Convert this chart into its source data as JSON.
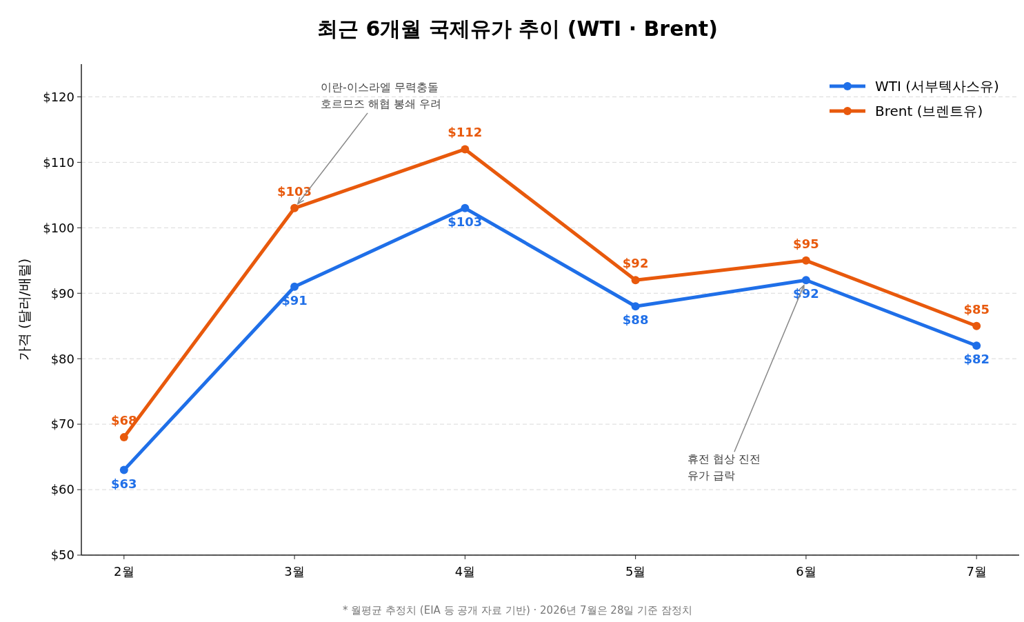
{
  "chart_data": {
    "type": "line",
    "title": "최근 6개월 국제유가 추이 (WTI · Brent)",
    "ylabel": "가격 (달러/배럴)",
    "categories": [
      "2월",
      "3월",
      "4월",
      "5월",
      "6월",
      "7월"
    ],
    "series": [
      {
        "name": "WTI (서부텍사스유)",
        "color": "#1f6fe8",
        "values": [
          63,
          91,
          103,
          88,
          92,
          82
        ],
        "value_labels": [
          "$63",
          "$91",
          "$103",
          "$88",
          "$92",
          "$82"
        ]
      },
      {
        "name": "Brent (브렌트유)",
        "color": "#e8590c",
        "values": [
          68,
          103,
          112,
          92,
          95,
          85
        ],
        "value_labels": [
          "$68",
          "$103",
          "$112",
          "$92",
          "$95",
          "$85"
        ]
      }
    ],
    "ylim": [
      50,
      125
    ],
    "yticks": [
      {
        "value": 50,
        "label": "$50"
      },
      {
        "value": 60,
        "label": "$60"
      },
      {
        "value": 70,
        "label": "$70"
      },
      {
        "value": 80,
        "label": "$80"
      },
      {
        "value": 90,
        "label": "$90"
      },
      {
        "value": 100,
        "label": "$100"
      },
      {
        "value": 110,
        "label": "$110"
      },
      {
        "value": 120,
        "label": "$120"
      }
    ],
    "grid": "y",
    "legend": "top right",
    "marker": "circle",
    "line_style": "solid",
    "annotations": [
      {
        "text": "이란-이스라엘 무력충돌\n호르므즈 해협 봉쇄 우려",
        "x": "3월",
        "y": 103
      },
      {
        "text": "휴전 협상 진전\n유가 급락",
        "x": "6월",
        "y": 92
      },
      "* 월평균 추정치 (EIA 등 공개 자료 기반) · 2026년 7월은 28일 기준 잠정치"
    ]
  }
}
